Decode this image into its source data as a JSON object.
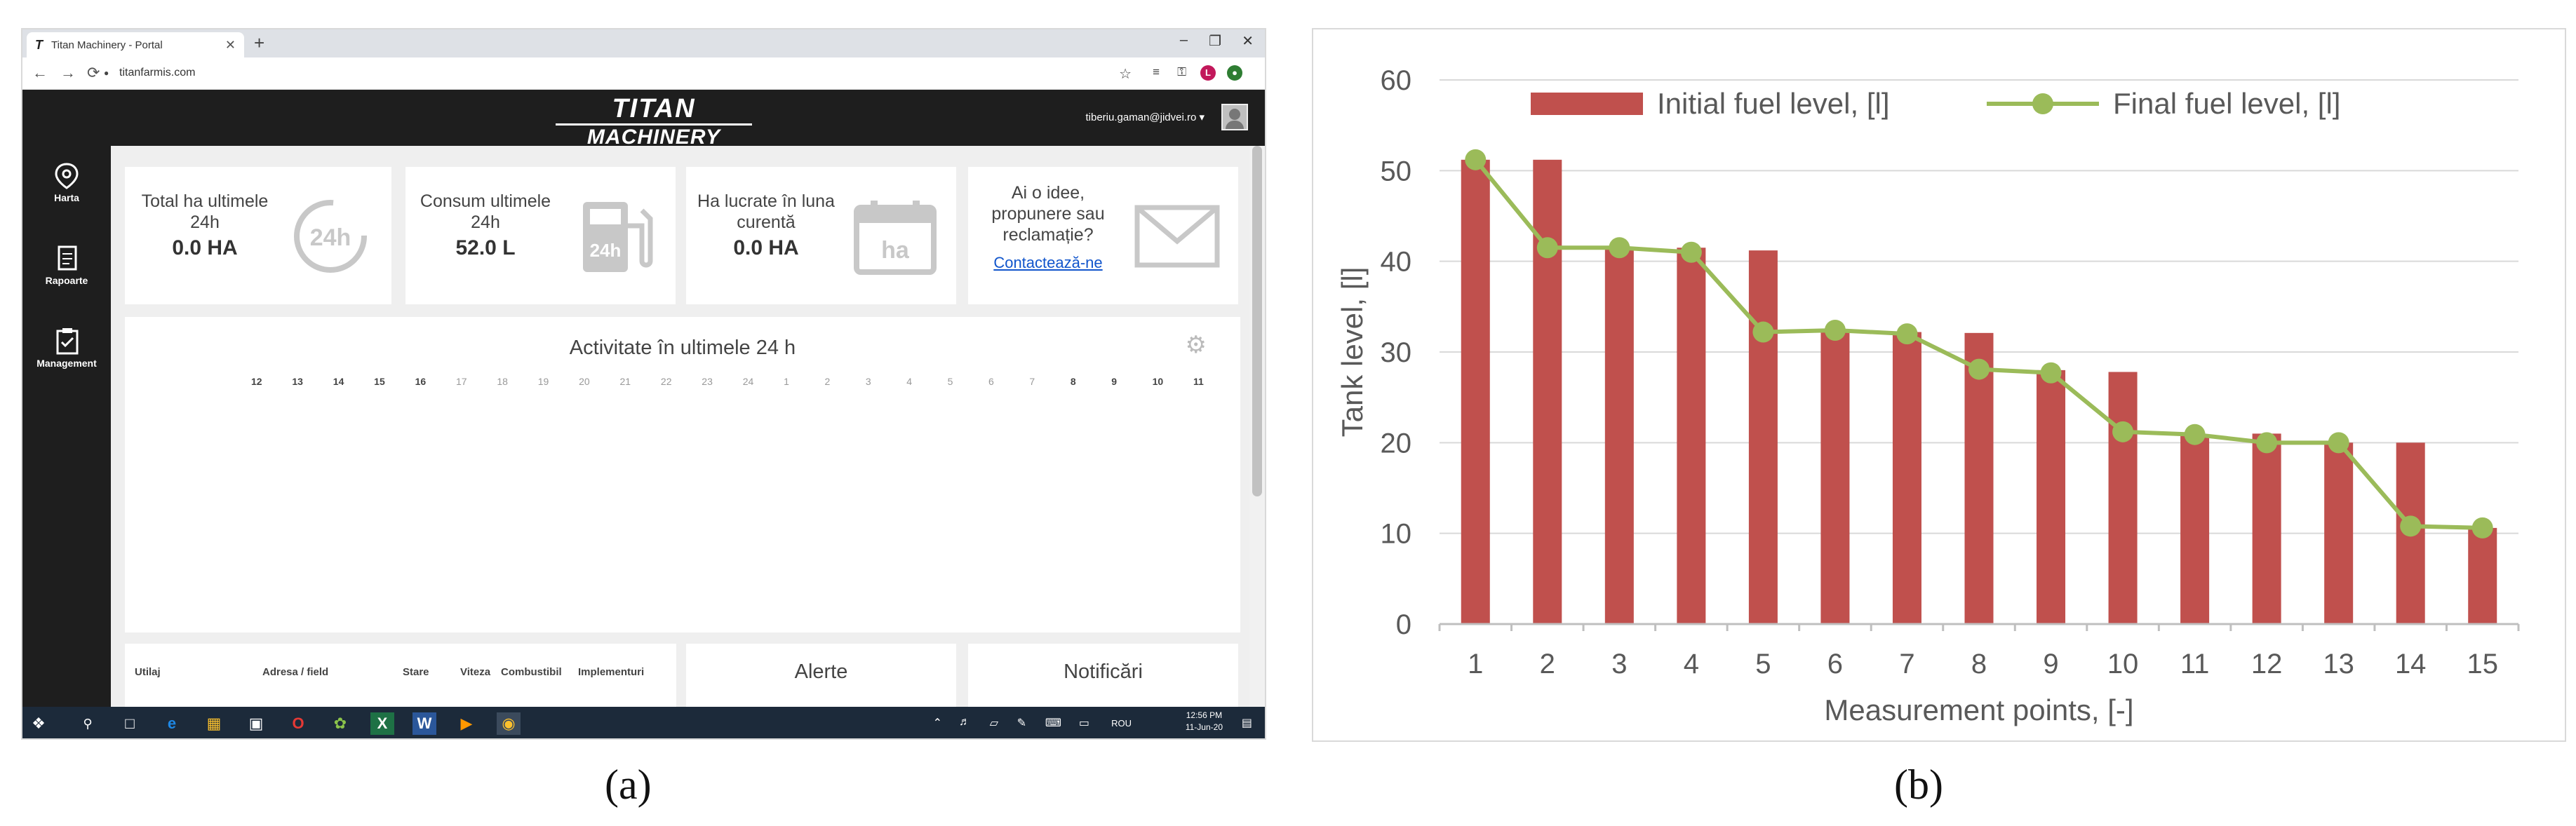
{
  "labels": {
    "a": "(a)",
    "b": "(b)"
  },
  "browser": {
    "tab_title": "Titan Machinery - Portal",
    "tab_logo": "T",
    "tab_close": "✕",
    "new_tab": "+",
    "min": "–",
    "max": "❐",
    "close": "✕",
    "url": "titanfarmis.com",
    "back": "←",
    "forward": "→",
    "reload": "⟳",
    "lock": "🔒",
    "star": "☆",
    "profile_initial": "L"
  },
  "app": {
    "brand_line1": "TITAN",
    "brand_line2": "MACHINERY",
    "user_email": "tiberiu.gaman@jidvei.ro ▾",
    "sidebar": [
      {
        "label": "Harta",
        "icon": "map-pin-icon"
      },
      {
        "label": "Rapoarte",
        "icon": "report-icon"
      },
      {
        "label": "Management",
        "icon": "clipboard-icon"
      }
    ],
    "cards": [
      {
        "text": "Total ha ultimele 24h",
        "value": "0.0 HA",
        "icon_text": "24h"
      },
      {
        "text": "Consum ultimele 24h",
        "value": "52.0 L",
        "icon_text": "24h"
      },
      {
        "text": "Ha lucrate în luna curentă",
        "value": "0.0 HA",
        "icon_text": "ha"
      },
      {
        "text": "Ai o idee, propunere sau reclamație?",
        "link": "Contactează-ne"
      }
    ],
    "activity": {
      "title": "Activitate în ultimele 24 h",
      "hours": [
        "12",
        "13",
        "14",
        "15",
        "16",
        "17",
        "18",
        "19",
        "20",
        "21",
        "22",
        "23",
        "24",
        "1",
        "2",
        "3",
        "4",
        "5",
        "6",
        "7",
        "8",
        "9",
        "10",
        "11"
      ]
    },
    "table_headers": [
      "Utilaj",
      "Adresa / field",
      "Stare",
      "Viteza",
      "Combustibil",
      "Implementuri"
    ],
    "alerts_title": "Alerte",
    "notifications_title": "Notificări"
  },
  "taskbar": {
    "lang": "ROU",
    "time": "12:56 PM",
    "date": "11-Jun-20"
  },
  "chart_data": {
    "type": "bar+line",
    "categories": [
      "1",
      "2",
      "3",
      "4",
      "5",
      "6",
      "7",
      "8",
      "9",
      "10",
      "11",
      "12",
      "13",
      "14",
      "15"
    ],
    "series": [
      {
        "name": "Initial fuel level, [l]",
        "type": "bar",
        "color": "#c0504d",
        "values": [
          51.2,
          51.2,
          41.5,
          41.5,
          41.2,
          32.3,
          32.2,
          32.1,
          28.0,
          27.8,
          20.8,
          21.0,
          20.0,
          20.0,
          10.6
        ]
      },
      {
        "name": "Final fuel level, [l]",
        "type": "line",
        "color": "#9bbb59",
        "values": [
          51.2,
          41.5,
          41.5,
          41.0,
          32.2,
          32.4,
          32.0,
          28.1,
          27.7,
          21.2,
          20.9,
          20.0,
          20.0,
          10.8,
          10.6
        ]
      }
    ],
    "xlabel": "Measurement points, [-]",
    "ylabel": "Tank level, [l]",
    "ylim": [
      0,
      60
    ],
    "yticks": [
      0,
      10,
      20,
      30,
      40,
      50,
      60
    ],
    "grid": true,
    "legend": "top"
  }
}
